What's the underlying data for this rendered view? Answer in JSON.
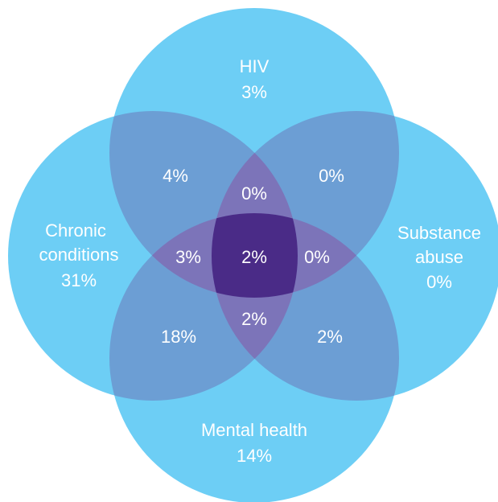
{
  "colors": {
    "background": "#ffffff",
    "circle": "#6dcef5",
    "overlap2": "#6c9ed4",
    "overlap3": "#7c74b9",
    "overlap4": "#4a2b87",
    "text": "#ffffff"
  },
  "sets": {
    "hiv": {
      "name": "HIV",
      "value": "3%"
    },
    "chronic": {
      "name_line1": "Chronic",
      "name_line2": "conditions",
      "value": "31%"
    },
    "substance": {
      "name_line1": "Substance",
      "name_line2": "abuse",
      "value": "0%"
    },
    "mental": {
      "name": "Mental health",
      "value": "14%"
    }
  },
  "overlaps": {
    "hiv_chronic": "4%",
    "hiv_substance": "0%",
    "chronic_mental": "18%",
    "substance_mental": "2%",
    "hiv_chronic_substance": "0%",
    "hiv_chronic_mental": "3%",
    "hiv_substance_mental": "0%",
    "chronic_substance_mental": "2%",
    "all_four": "2%"
  }
}
